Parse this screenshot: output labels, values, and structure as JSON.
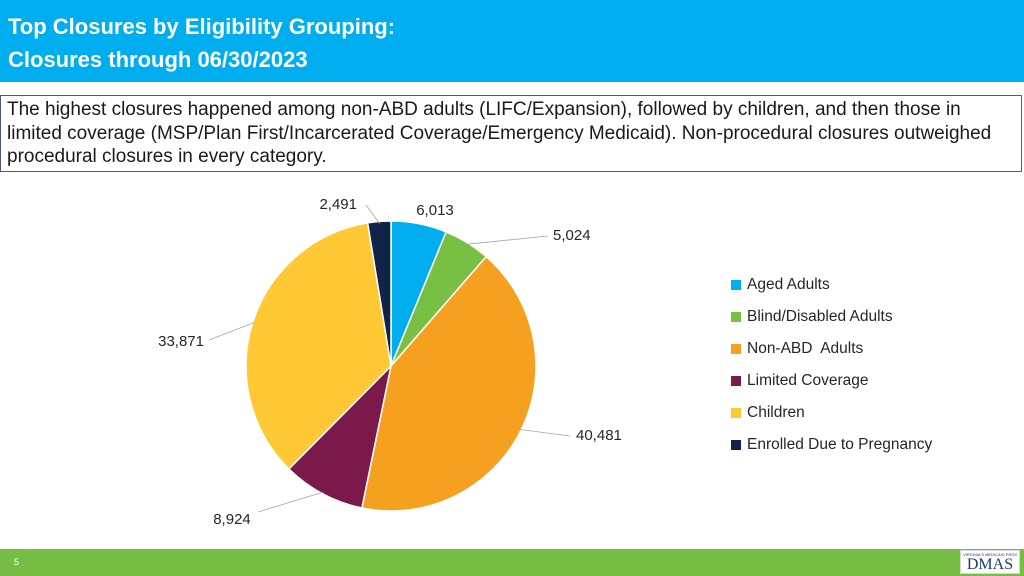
{
  "header": {
    "title_line1": "Top Closures by Eligibility Grouping:",
    "title_line2": "Closures through 06/30/2023"
  },
  "summary": {
    "text": "The highest closures happened among non-ABD adults (LIFC/Expansion), followed by children, and then those in limited coverage (MSP/Plan First/Incarcerated Coverage/Emergency Medicaid). Non-procedural closures outweighed procedural closures in every category."
  },
  "chart_data": {
    "type": "pie",
    "title": "",
    "slices": [
      {
        "label": "Aged Adults",
        "value": 6013,
        "display": "6,013",
        "color": "#00aeef"
      },
      {
        "label": "Blind/Disabled Adults",
        "value": 5024,
        "display": "5,024",
        "color": "#77c043"
      },
      {
        "label": "Non-ABD  Adults",
        "value": 40481,
        "display": "40,481",
        "color": "#f5a11f"
      },
      {
        "label": "Limited Coverage",
        "value": 8924,
        "display": "8,924",
        "color": "#7b1a4a"
      },
      {
        "label": "Children",
        "value": 33871,
        "display": "33,871",
        "color": "#ffc936"
      },
      {
        "label": "Enrolled Due to Pregnancy",
        "value": 2491,
        "display": "2,491",
        "color": "#0f2446"
      }
    ],
    "legend_position": "right"
  },
  "footer": {
    "page_number": "5",
    "logo_tagline": "VIRGINIA'S MEDICAID PROGRAM",
    "logo_text": "DMAS"
  }
}
